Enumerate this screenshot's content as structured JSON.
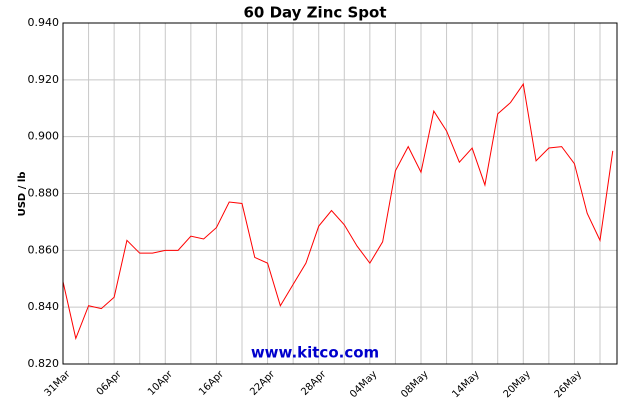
{
  "chart_data": {
    "type": "line",
    "title": "60 Day Zinc Spot",
    "y_label": "USD / lb",
    "watermark": "www.kitco.com",
    "categories": [
      "31Mar",
      null,
      null,
      null,
      "06Apr",
      null,
      null,
      null,
      "10Apr",
      null,
      null,
      null,
      "16Apr",
      null,
      null,
      null,
      "22Apr",
      null,
      null,
      null,
      "28Apr",
      null,
      null,
      null,
      "04May",
      null,
      null,
      null,
      "08May",
      null,
      null,
      null,
      "14May",
      null,
      null,
      null,
      "20May",
      null,
      null,
      null,
      "26May",
      null,
      null,
      null
    ],
    "series": [
      {
        "name": "Zinc",
        "color": "#ff0000",
        "values": [
          0.849,
          0.829,
          0.8405,
          0.8395,
          0.8435,
          0.8635,
          0.859,
          0.859,
          0.86,
          0.86,
          0.865,
          0.864,
          0.868,
          0.877,
          0.8765,
          0.8575,
          0.8555,
          0.8405,
          0.848,
          0.8555,
          0.8685,
          0.874,
          0.869,
          0.8615,
          0.8555,
          0.863,
          0.888,
          0.8965,
          0.8875,
          0.909,
          0.902,
          0.891,
          0.896,
          0.883,
          0.908,
          0.912,
          0.9185,
          0.8915,
          0.896,
          0.8965,
          0.8905,
          0.873,
          0.8635,
          0.895
        ]
      }
    ],
    "ylim": [
      0.82,
      0.94
    ],
    "yticks": [
      {
        "value": 0.82,
        "label": "0.820"
      },
      {
        "value": 0.84,
        "label": "0.840"
      },
      {
        "value": 0.86,
        "label": "0.860"
      },
      {
        "value": 0.88,
        "label": "0.880"
      },
      {
        "value": 0.9,
        "label": "0.900"
      },
      {
        "value": 0.92,
        "label": "0.920"
      },
      {
        "value": 0.94,
        "label": "0.940"
      }
    ],
    "grid": true
  }
}
